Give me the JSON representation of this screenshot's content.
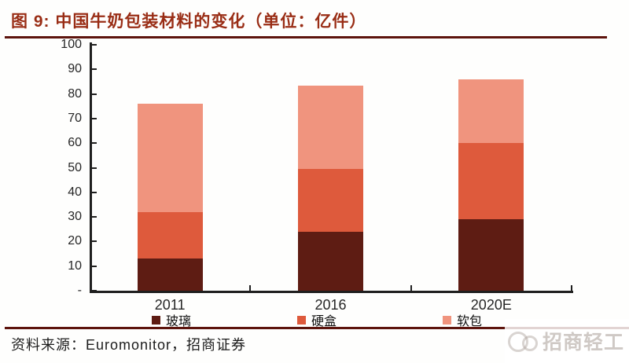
{
  "header": {
    "title": "图 9: 中国牛奶包装材料的变化（单位：亿件）",
    "title_color": "#992d15",
    "rule_color": "#5d140d"
  },
  "chart_data": {
    "type": "stacked-bar",
    "title": "中国牛奶包装材料的变化",
    "unit_label": "亿件",
    "categories": [
      "2011",
      "2016",
      "2020E"
    ],
    "series": [
      {
        "name": "玻璃",
        "color": "#5e1c13",
        "values": [
          13,
          24,
          29
        ]
      },
      {
        "name": "硬盒",
        "color": "#de5a3c",
        "values": [
          19,
          25.5,
          31
        ]
      },
      {
        "name": "软包",
        "color": "#f0947e",
        "values": [
          44,
          34,
          26
        ]
      }
    ],
    "totals": [
      76,
      83.5,
      86
    ],
    "ylim": [
      0,
      100
    ],
    "ytick_labels": [
      "-",
      "10",
      "20",
      "30",
      "40",
      "50",
      "60",
      "70",
      "80",
      "90",
      "100"
    ],
    "grid": false,
    "legend_position": "bottom",
    "axis_color": "#1f1f1f"
  },
  "footer": {
    "source_label": "资料来源：Euromonitor，招商证券",
    "rule_color": "#5d140d"
  },
  "watermark": {
    "text": "招商轻工",
    "logo": "overlapping-circles-logo"
  }
}
